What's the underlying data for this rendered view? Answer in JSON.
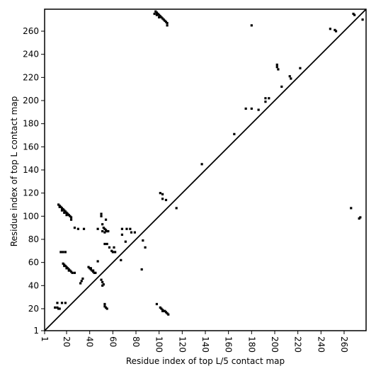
{
  "chart_data": {
    "type": "scatter",
    "xlabel": "Residue index of top L/5 contact map",
    "ylabel": "Residue index of top L contact map",
    "xlim": [
      1,
      279
    ],
    "ylim": [
      1,
      279
    ],
    "xticks": [
      1,
      20,
      40,
      60,
      80,
      100,
      120,
      140,
      160,
      180,
      200,
      220,
      240,
      260
    ],
    "yticks": [
      1,
      20,
      40,
      60,
      80,
      100,
      120,
      140,
      160,
      180,
      200,
      220,
      240,
      260
    ],
    "color": "#000000",
    "x": [
      13,
      14,
      15,
      16,
      17,
      18,
      19,
      20,
      21,
      22,
      23,
      24,
      24,
      14,
      16,
      18,
      20,
      15,
      17,
      19,
      17,
      18,
      19,
      20,
      21,
      22,
      23,
      24,
      25,
      27,
      18,
      20,
      22,
      12,
      16,
      19,
      12,
      13,
      10,
      14,
      27,
      30,
      35,
      47,
      39,
      40,
      41,
      42,
      43,
      44,
      45,
      41,
      43,
      33,
      34,
      32,
      47,
      50,
      50,
      51,
      52,
      53,
      54,
      54,
      55,
      51,
      53,
      56,
      50,
      51,
      52,
      51,
      53,
      55,
      53,
      54,
      55,
      53,
      57,
      59,
      60,
      61,
      62,
      67,
      68,
      72,
      75,
      76,
      79,
      71,
      68,
      85,
      88,
      86,
      98,
      101,
      102,
      103,
      104,
      105,
      106,
      107,
      108,
      103,
      101,
      103,
      103,
      106,
      115,
      137,
      165,
      175,
      180,
      186,
      192,
      192,
      195,
      202,
      202,
      203,
      206,
      213,
      214,
      222,
      97,
      98,
      99,
      100,
      101,
      102,
      103,
      104,
      105,
      106,
      107,
      107,
      96,
      98,
      100,
      180,
      248,
      252,
      253,
      268,
      269,
      276,
      266,
      274,
      273
    ],
    "y": [
      110,
      109,
      108,
      107,
      106,
      105,
      104,
      103,
      102,
      101,
      100,
      99,
      97,
      108,
      105,
      103,
      101,
      69,
      69,
      69,
      59,
      58,
      57,
      56,
      55,
      54,
      53,
      52,
      51,
      51,
      57,
      55,
      53,
      25,
      25,
      25,
      21,
      20,
      21,
      20,
      90,
      89,
      89,
      89,
      56,
      55,
      54,
      53,
      52,
      51,
      51,
      55,
      53,
      44,
      46,
      42,
      61,
      102,
      100,
      93,
      90,
      89,
      97,
      88,
      87,
      87,
      86,
      87,
      45,
      43,
      41,
      40,
      76,
      76,
      24,
      21,
      20,
      22,
      73,
      70,
      69,
      73,
      69,
      62,
      89,
      89,
      89,
      86,
      86,
      78,
      84,
      54,
      73,
      79,
      24,
      21,
      20,
      19,
      18,
      18,
      17,
      16,
      15,
      18,
      120,
      119,
      115,
      114,
      107,
      145,
      171,
      193,
      193,
      192,
      199,
      202,
      202,
      231,
      229,
      227,
      212,
      221,
      219,
      228,
      277,
      276,
      275,
      274,
      273,
      272,
      271,
      270,
      269,
      268,
      267,
      265,
      275,
      274,
      272,
      265,
      262,
      261,
      260,
      275,
      274,
      270,
      107,
      99,
      98
    ]
  }
}
